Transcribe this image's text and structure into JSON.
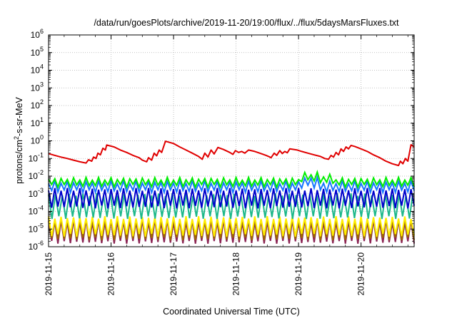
{
  "chart_data": {
    "type": "line",
    "title": "/data/run/goesPlots/archive/2019-11-20/19:00/flux/../flux/5daysMarsFluxes.txt",
    "xlabel": "Coordinated Universal Time (UTC)",
    "ylabel_parts": [
      "protons/cm",
      "2",
      "-s-sr-MeV"
    ],
    "xlim": [
      0,
      5.85
    ],
    "ylim_exp": [
      -6,
      6
    ],
    "log_y": true,
    "grid": true,
    "x_ticks": [
      {
        "x": 0,
        "label": "2019-11-15"
      },
      {
        "x": 1,
        "label": "2019-11-16"
      },
      {
        "x": 2,
        "label": "2019-11-17"
      },
      {
        "x": 3,
        "label": "2019-11-18"
      },
      {
        "x": 4,
        "label": "2019-11-19"
      },
      {
        "x": 5,
        "label": "2019-11-20"
      }
    ],
    "y_ticks": [
      {
        "exp": -6,
        "base": "10",
        "power": "-6"
      },
      {
        "exp": -5,
        "base": "10",
        "power": "-5"
      },
      {
        "exp": -4,
        "base": "10",
        "power": "-4"
      },
      {
        "exp": -3,
        "base": "10",
        "power": "-3"
      },
      {
        "exp": -2,
        "base": "10",
        "power": "-2"
      },
      {
        "exp": -1,
        "base": "10",
        "power": "-1"
      },
      {
        "exp": 0,
        "base": "10",
        "power": "0"
      },
      {
        "exp": 1,
        "base": "10",
        "power": "1"
      },
      {
        "exp": 2,
        "base": "10",
        "power": "2"
      },
      {
        "exp": 3,
        "base": "10",
        "power": "3"
      },
      {
        "exp": 4,
        "base": "10",
        "power": "4"
      },
      {
        "exp": 5,
        "base": "10",
        "power": "5"
      },
      {
        "exp": 6,
        "base": "10",
        "power": "6"
      }
    ],
    "series": [
      {
        "color": "#e00000",
        "points": [
          [
            0.0,
            0.19
          ],
          [
            0.1,
            0.15
          ],
          [
            0.2,
            0.12
          ],
          [
            0.3,
            0.1
          ],
          [
            0.4,
            0.08
          ],
          [
            0.5,
            0.065
          ],
          [
            0.6,
            0.055
          ],
          [
            0.64,
            0.085
          ],
          [
            0.69,
            0.07
          ],
          [
            0.72,
            0.12
          ],
          [
            0.76,
            0.1
          ],
          [
            0.79,
            0.2
          ],
          [
            0.83,
            0.16
          ],
          [
            0.87,
            0.38
          ],
          [
            0.91,
            0.3
          ],
          [
            0.93,
            0.58
          ],
          [
            1.05,
            0.45
          ],
          [
            1.15,
            0.3
          ],
          [
            1.25,
            0.22
          ],
          [
            1.35,
            0.15
          ],
          [
            1.45,
            0.11
          ],
          [
            1.5,
            0.08
          ],
          [
            1.57,
            0.065
          ],
          [
            1.6,
            0.11
          ],
          [
            1.65,
            0.08
          ],
          [
            1.69,
            0.2
          ],
          [
            1.73,
            0.14
          ],
          [
            1.77,
            0.3
          ],
          [
            1.81,
            0.22
          ],
          [
            1.87,
            0.95
          ],
          [
            2.0,
            0.7
          ],
          [
            2.1,
            0.45
          ],
          [
            2.2,
            0.3
          ],
          [
            2.3,
            0.2
          ],
          [
            2.4,
            0.13
          ],
          [
            2.46,
            0.09
          ],
          [
            2.5,
            0.2
          ],
          [
            2.55,
            0.12
          ],
          [
            2.6,
            0.3
          ],
          [
            2.65,
            0.18
          ],
          [
            2.71,
            0.42
          ],
          [
            2.8,
            0.32
          ],
          [
            2.9,
            0.22
          ],
          [
            2.95,
            0.17
          ],
          [
            2.99,
            0.28
          ],
          [
            3.04,
            0.22
          ],
          [
            3.09,
            0.25
          ],
          [
            3.14,
            0.2
          ],
          [
            3.2,
            0.3
          ],
          [
            3.3,
            0.25
          ],
          [
            3.4,
            0.19
          ],
          [
            3.48,
            0.15
          ],
          [
            3.52,
            0.13
          ],
          [
            3.56,
            0.11
          ],
          [
            3.61,
            0.2
          ],
          [
            3.65,
            0.15
          ],
          [
            3.7,
            0.28
          ],
          [
            3.74,
            0.19
          ],
          [
            3.78,
            0.25
          ],
          [
            3.82,
            0.21
          ],
          [
            3.86,
            0.35
          ],
          [
            3.98,
            0.3
          ],
          [
            4.05,
            0.25
          ],
          [
            4.15,
            0.2
          ],
          [
            4.25,
            0.16
          ],
          [
            4.35,
            0.13
          ],
          [
            4.42,
            0.1
          ],
          [
            4.48,
            0.09
          ],
          [
            4.52,
            0.15
          ],
          [
            4.56,
            0.12
          ],
          [
            4.6,
            0.22
          ],
          [
            4.64,
            0.16
          ],
          [
            4.68,
            0.35
          ],
          [
            4.72,
            0.25
          ],
          [
            4.76,
            0.45
          ],
          [
            4.8,
            0.35
          ],
          [
            4.84,
            0.55
          ],
          [
            4.9,
            0.48
          ],
          [
            5.0,
            0.35
          ],
          [
            5.1,
            0.25
          ],
          [
            5.2,
            0.16
          ],
          [
            5.3,
            0.11
          ],
          [
            5.4,
            0.07
          ],
          [
            5.5,
            0.05
          ],
          [
            5.6,
            0.04
          ],
          [
            5.63,
            0.07
          ],
          [
            5.67,
            0.05
          ],
          [
            5.71,
            0.1
          ],
          [
            5.75,
            0.07
          ],
          [
            5.8,
            0.6
          ],
          [
            5.85,
            0.45
          ]
        ]
      }
    ],
    "sawtooth_series": [
      {
        "color": "#00ee00",
        "period": 0.1,
        "hi_log": -2.15,
        "lo_log": -2.55,
        "spikes": [
          [
            4.0,
            4.3,
            0.3
          ],
          [
            4.3,
            4.55,
            0.18
          ]
        ]
      },
      {
        "color": "#1677ff",
        "period": 0.1,
        "hi_log": -2.35,
        "lo_log": -2.85,
        "spikes": [
          [
            4.0,
            4.3,
            0.25
          ]
        ]
      },
      {
        "color": "#0000cc",
        "period": 0.1,
        "hi_log": -2.75,
        "lo_log": -3.75,
        "spikes": []
      },
      {
        "color": "#1db88a",
        "period": 0.11,
        "hi_log": -3.05,
        "lo_log": -4.35,
        "spikes": []
      },
      {
        "color": "#ffee00",
        "period": 0.1,
        "hi_log": -4.35,
        "lo_log": -5.35,
        "spikes": []
      },
      {
        "color": "#9b6a00",
        "period": 0.1,
        "hi_log": -4.45,
        "lo_log": -5.55,
        "spikes": []
      },
      {
        "color": "#8b2252",
        "period": 0.1,
        "hi_log": -4.55,
        "lo_log": -5.75,
        "spikes": []
      }
    ]
  }
}
